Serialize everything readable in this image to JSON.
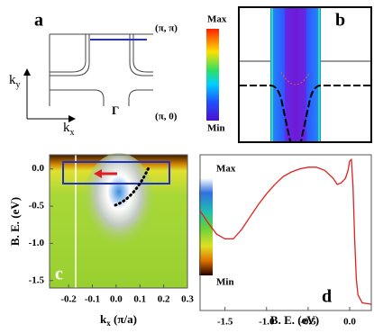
{
  "panels": {
    "a": {
      "label": "a",
      "corner_top": "(π, π)",
      "corner_bottom": "(π, 0)",
      "gamma": "Γ",
      "ky": "k",
      "ky_sub": "y",
      "kx": "k",
      "kx_sub": "x",
      "colorbar": {
        "max": "Max",
        "min": "Min"
      }
    },
    "b": {
      "label": "b"
    }
  },
  "chart_data": [
    {
      "type": "heatmap",
      "label": "c",
      "ylabel": "B. E.  (eV)",
      "xlabel": "k",
      "xlabel_sub": "x",
      "xlabel_unit": " (π/a)",
      "xlim": [
        -0.28,
        0.3
      ],
      "ylim": [
        -1.6,
        0.19
      ],
      "xticks": [
        -0.2,
        -0.1,
        {
          "value": 0,
          "label": "0.0"
        },
        0.1,
        0.2,
        0.3
      ],
      "yticks": [
        {
          "value": 0,
          "label": "0.0"
        },
        -0.5,
        {
          "value": -1,
          "label": "-1.0"
        },
        -1.5
      ],
      "colorbar": {
        "max": "Max",
        "min": "Min"
      }
    },
    {
      "type": "line",
      "label": "d",
      "xlabel": "B. E.  (eV)",
      "color": "#e02020",
      "xlim": [
        -1.8,
        0.26
      ],
      "ylim": [
        0,
        1
      ],
      "xticks": [
        -1.5,
        {
          "value": -1,
          "label": "-1.0"
        },
        -0.5,
        {
          "value": 0,
          "label": "0.0"
        }
      ],
      "x": [
        -1.8,
        -1.7,
        -1.6,
        -1.5,
        -1.4,
        -1.3,
        -1.2,
        -1.1,
        -1.0,
        -0.9,
        -0.8,
        -0.7,
        -0.6,
        -0.5,
        -0.4,
        -0.3,
        -0.2,
        -0.15,
        -0.1,
        -0.05,
        -0.02,
        0.0,
        0.02,
        0.04,
        0.06,
        0.08,
        0.1,
        0.15,
        0.26
      ],
      "values": [
        0.64,
        0.56,
        0.49,
        0.46,
        0.46,
        0.52,
        0.6,
        0.68,
        0.75,
        0.81,
        0.86,
        0.89,
        0.91,
        0.92,
        0.92,
        0.9,
        0.85,
        0.81,
        0.82,
        0.85,
        0.9,
        0.96,
        0.97,
        0.8,
        0.45,
        0.2,
        0.1,
        0.05,
        0.04
      ]
    }
  ]
}
